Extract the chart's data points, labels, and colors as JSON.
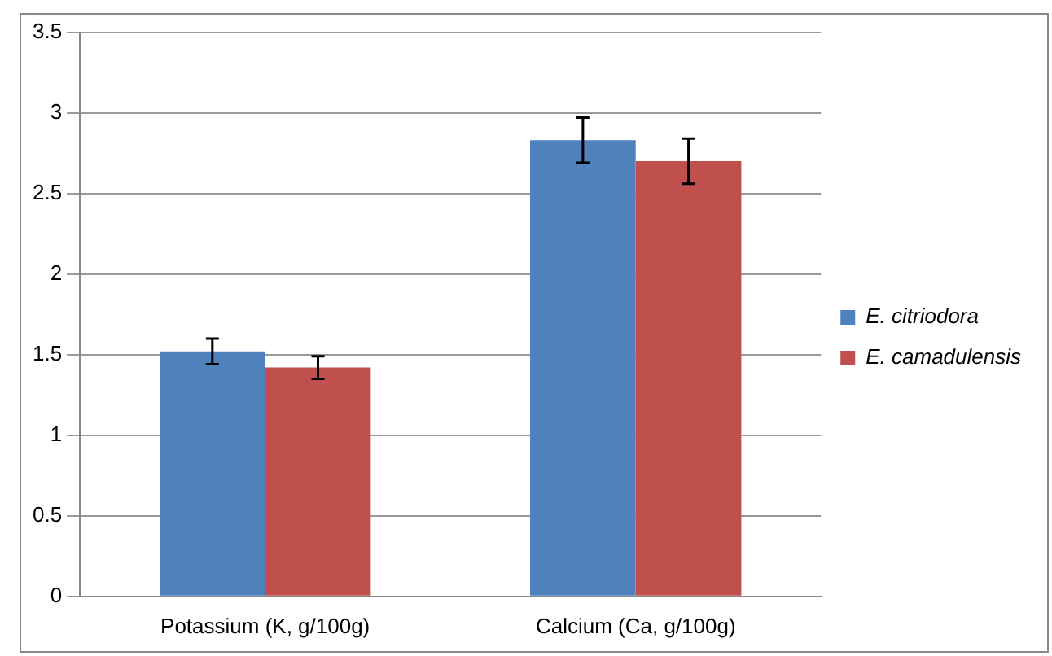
{
  "chart_data": {
    "type": "bar",
    "categories": [
      "Potassium (K, g/100g)",
      "Calcium (Ca, g/100g)"
    ],
    "series": [
      {
        "name": "E. citriodora",
        "color": "#4f81bd",
        "values": [
          1.52,
          2.83
        ],
        "errors": [
          0.08,
          0.14
        ]
      },
      {
        "name": "E. camadulensis",
        "color": "#c0504d",
        "values": [
          1.42,
          2.7
        ],
        "errors": [
          0.07,
          0.14
        ]
      }
    ],
    "ylim": [
      0,
      3.5
    ],
    "yticks": [
      0,
      0.5,
      1,
      1.5,
      2,
      2.5,
      3,
      3.5
    ],
    "grid": "y",
    "legend": "right"
  }
}
